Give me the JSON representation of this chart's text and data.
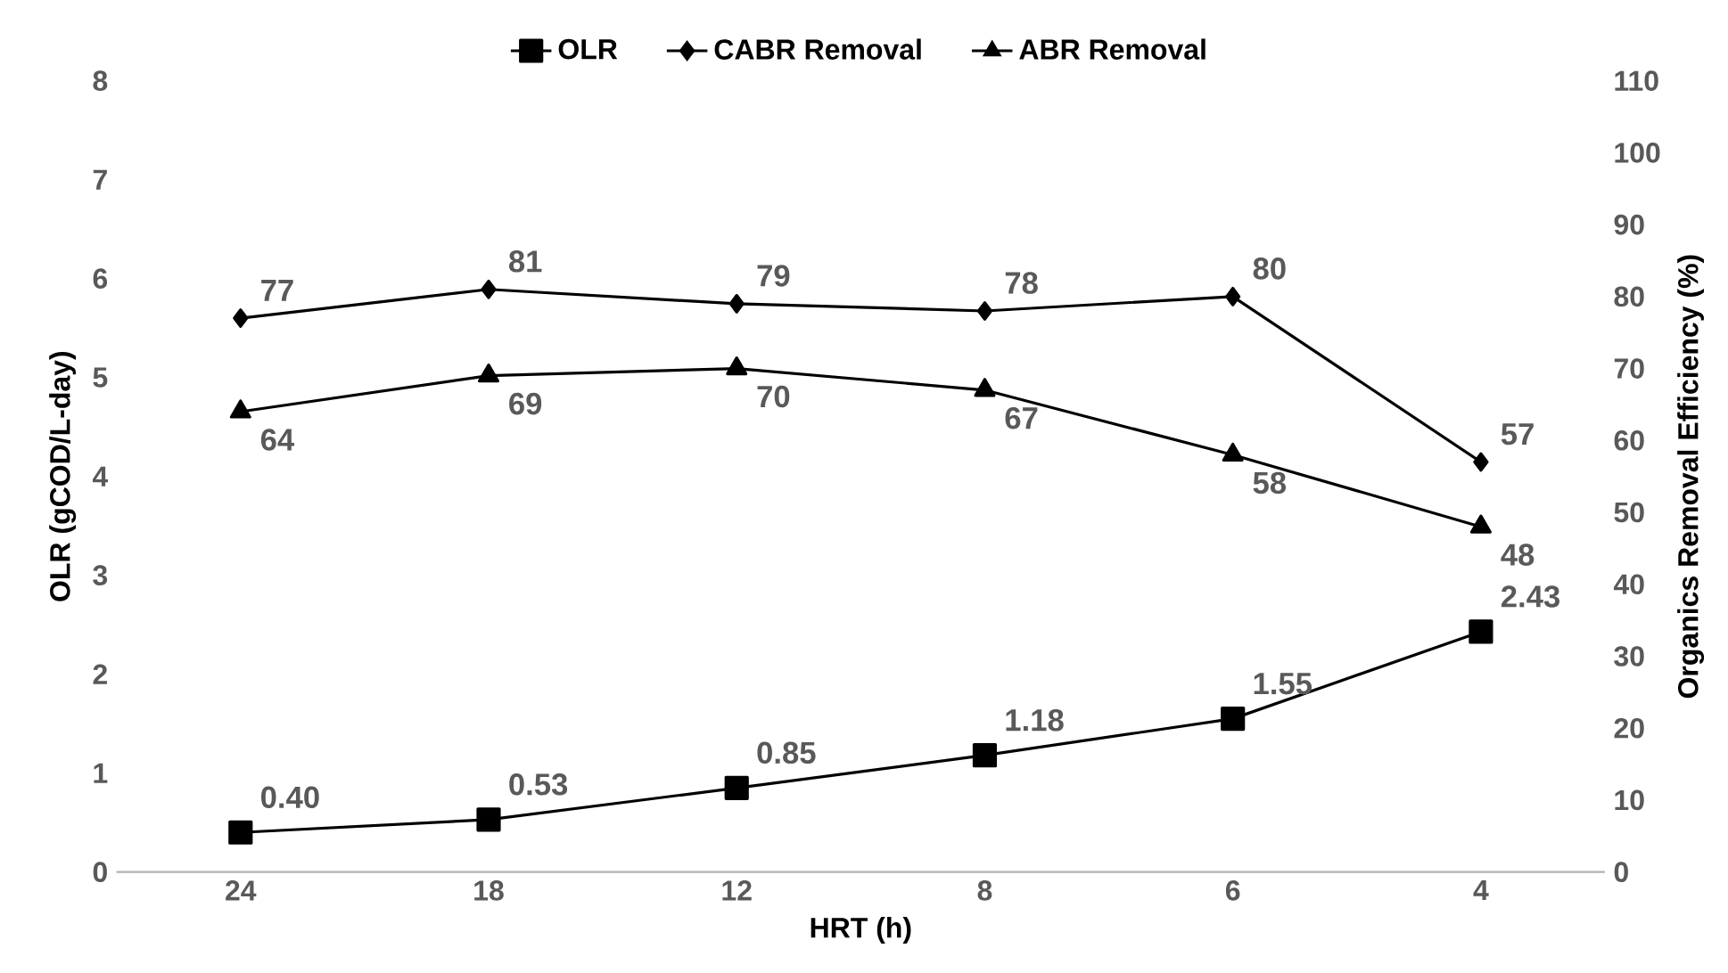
{
  "chart_data": {
    "type": "line",
    "xlabel": "HRT (h)",
    "ylabel": "OLR (gCOD/L-day)",
    "y2label": "Organics Removal Efficiency (%)",
    "categories": [
      "24",
      "18",
      "12",
      "8",
      "6",
      "4"
    ],
    "series": [
      {
        "name": "OLR",
        "color": "#000000",
        "marker": "square",
        "values": [
          0.4,
          0.53,
          0.85,
          1.18,
          1.55,
          2.43
        ],
        "value_labels": [
          "0.40",
          "0.53",
          "0.85",
          "1.18",
          "1.55",
          "2.43"
        ]
      },
      {
        "name": "CABR Removal",
        "color": "#000000",
        "marker": "diamond",
        "axis": "y2",
        "values": [
          77,
          81,
          79,
          78,
          80,
          57
        ],
        "value_labels": [
          "77",
          "81",
          "79",
          "78",
          "80",
          "57"
        ]
      },
      {
        "name": "ABR Removal",
        "color": "#000000",
        "marker": "triangle",
        "axis": "y2",
        "values": [
          64,
          69,
          70,
          67,
          58,
          48
        ],
        "value_labels": [
          "64",
          "69",
          "70",
          "67",
          "58",
          "48"
        ]
      }
    ],
    "ylim": [
      0,
      8
    ],
    "yticks": [
      0,
      1,
      2,
      3,
      4,
      5,
      6,
      7,
      8
    ],
    "y2lim": [
      0,
      110
    ],
    "y2ticks": [
      0,
      10,
      20,
      30,
      40,
      50,
      60,
      70,
      80,
      90,
      100,
      110
    ],
    "legend": "top",
    "grid": false
  }
}
